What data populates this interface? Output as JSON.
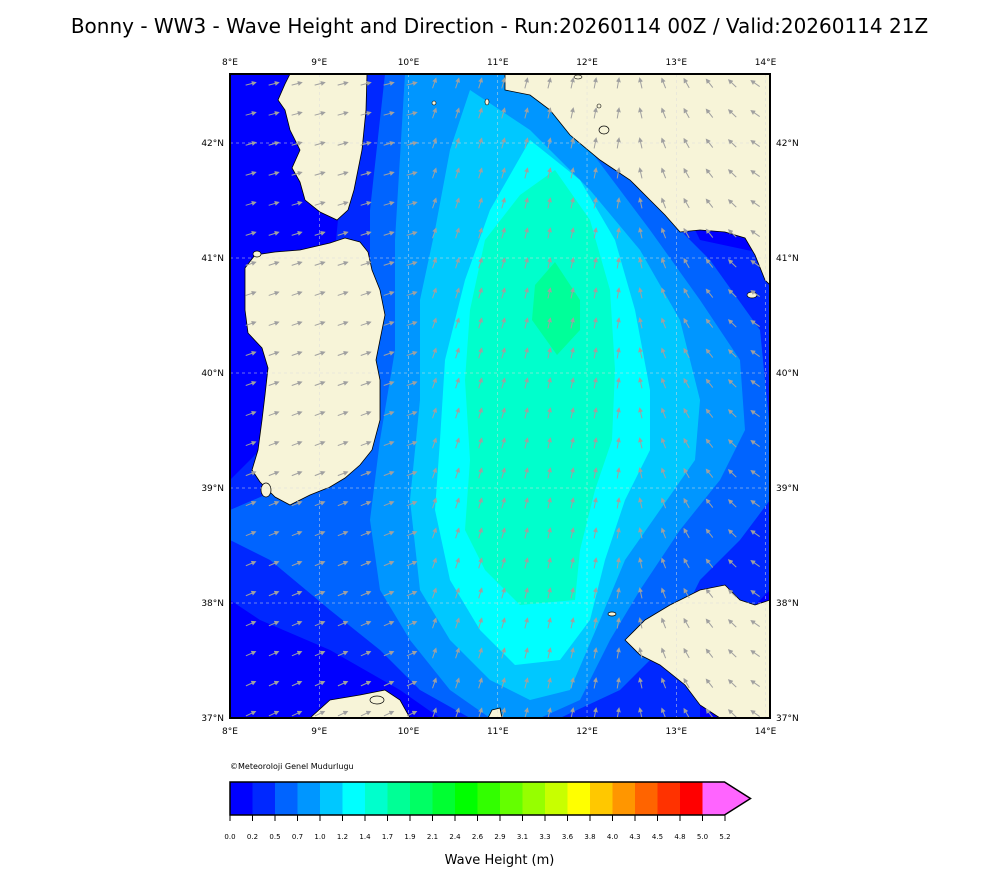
{
  "title": "Bonny - WW3 - Wave Height and Direction - Run:20260114 00Z / Valid:20260114 21Z",
  "map": {
    "lon_range": [
      8,
      14.05
    ],
    "lat_range": [
      37,
      42.6
    ],
    "lon_ticks": [
      "8°E",
      "9°E",
      "10°E",
      "11°E",
      "12°E",
      "13°E",
      "14°E"
    ],
    "lat_ticks": [
      "37°N",
      "38°N",
      "39°N",
      "40°N",
      "41°N",
      "42°N"
    ],
    "land_color": "#f7f4d8",
    "vector_color": "#a0a0a0",
    "max_wave_region_color": "#00ff99"
  },
  "copyright": "©Meteoroloji Genel Mudurlugu",
  "colorbar": {
    "title": "Wave Height (m)",
    "labels": [
      "0.0",
      "0.2",
      "0.5",
      "0.7",
      "1.0",
      "1.2",
      "1.4",
      "1.7",
      "1.9",
      "2.1",
      "2.4",
      "2.6",
      "2.9",
      "3.1",
      "3.3",
      "3.6",
      "3.8",
      "4.0",
      "4.3",
      "4.5",
      "4.8",
      "5.0",
      "5.2"
    ],
    "colors": [
      "#0000ff",
      "#0028ff",
      "#0064ff",
      "#0096ff",
      "#00c8ff",
      "#00ffff",
      "#00ffcc",
      "#00ff96",
      "#00ff64",
      "#00ff32",
      "#00ff00",
      "#32ff00",
      "#64ff00",
      "#96ff00",
      "#c8ff00",
      "#ffff00",
      "#ffc800",
      "#ff9600",
      "#ff6400",
      "#ff3200",
      "#ff0000",
      "#ff64ff"
    ]
  }
}
